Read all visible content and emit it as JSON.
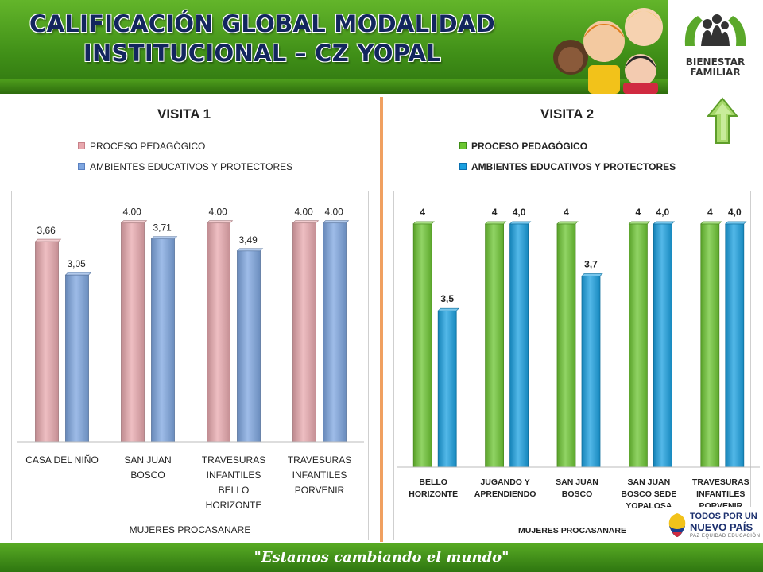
{
  "slide": {
    "title_line1": "CALIFICACIÓN GLOBAL MODALIDAD",
    "title_line2": "INSTITUCIONAL – CZ  YOPAL",
    "logo_line1": "BIENESTAR",
    "logo_line2": "FAMILIAR",
    "slogan": "\"Estamos cambiando el mundo\"",
    "gov_line1": "TODOS POR UN",
    "gov_line2": "NUEVO PAÍS",
    "gov_line3": "PAZ  EQUIDAD  EDUCACIÓN",
    "colors": {
      "header_green": "#4a9e1f",
      "title_navy": "#13265e",
      "divider": "#f0a060",
      "arrow": "#a6d86a"
    }
  },
  "chart_data": [
    {
      "type": "bar",
      "title": "VISITA 1",
      "xlabel": "MUJERES PROCASANARE",
      "categories": [
        "CASA DEL NIÑO",
        "SAN JUAN BOSCO",
        "TRAVESURAS INFANTILES BELLO HORIZONTE",
        "TRAVESURAS INFANTILES PORVENIR"
      ],
      "category_lines": [
        [
          "CASA DEL NIÑO"
        ],
        [
          "SAN JUAN",
          "BOSCO"
        ],
        [
          "TRAVESURAS",
          "INFANTILES",
          "BELLO",
          "HORIZONTE"
        ],
        [
          "TRAVESURAS",
          "INFANTILES",
          "PORVENIR"
        ]
      ],
      "series": [
        {
          "name": "PROCESO PEDAGÓGICO",
          "values": [
            3.66,
            4.0,
            4.0,
            4.0
          ],
          "labels": [
            "3,66",
            "4.00",
            "4.00",
            "4.00"
          ],
          "color": "#e8a8ae"
        },
        {
          "name": "AMBIENTES EDUCATIVOS Y PROTECTORES",
          "values": [
            3.05,
            3.71,
            3.49,
            4.0
          ],
          "labels": [
            "3,05",
            "3,71",
            "3,49",
            "4.00"
          ],
          "color": "#7ea6e0"
        }
      ],
      "ylim": [
        0,
        4.3
      ],
      "legend_position": "top-left",
      "grid": false
    },
    {
      "type": "bar",
      "title": "VISITA 2",
      "xlabel": "MUJERES PROCASANARE",
      "categories": [
        "BELLO HORIZONTE",
        "JUGANDO Y APRENDIENDO",
        "SAN JUAN BOSCO",
        "SAN JUAN BOSCO SEDE YOPALOSA",
        "TRAVESURAS INFANTILES PORVENIR"
      ],
      "category_lines": [
        [
          "BELLO",
          "HORIZONTE"
        ],
        [
          "JUGANDO Y",
          "APRENDIENDO"
        ],
        [
          "SAN JUAN",
          "BOSCO"
        ],
        [
          "SAN JUAN",
          "BOSCO SEDE",
          "YOPALOSA"
        ],
        [
          "TRAVESURAS",
          "INFANTILES",
          "PORVENIR"
        ]
      ],
      "series": [
        {
          "name": "PROCESO PEDAGÓGICO",
          "values": [
            4,
            4,
            4,
            4,
            4
          ],
          "labels": [
            "4",
            "4",
            "4",
            "4",
            "4"
          ],
          "color": "#6cc632"
        },
        {
          "name": "AMBIENTES EDUCATIVOS Y PROTECTORES",
          "values": [
            3.5,
            4.0,
            3.7,
            4.0,
            4.0
          ],
          "labels": [
            "3,5",
            "4,0",
            "3,7",
            "4,0",
            "4,0"
          ],
          "color": "#1aa0e0"
        }
      ],
      "ylim": [
        2.6,
        4.1
      ],
      "legend_position": "top-left",
      "grid": false
    }
  ]
}
